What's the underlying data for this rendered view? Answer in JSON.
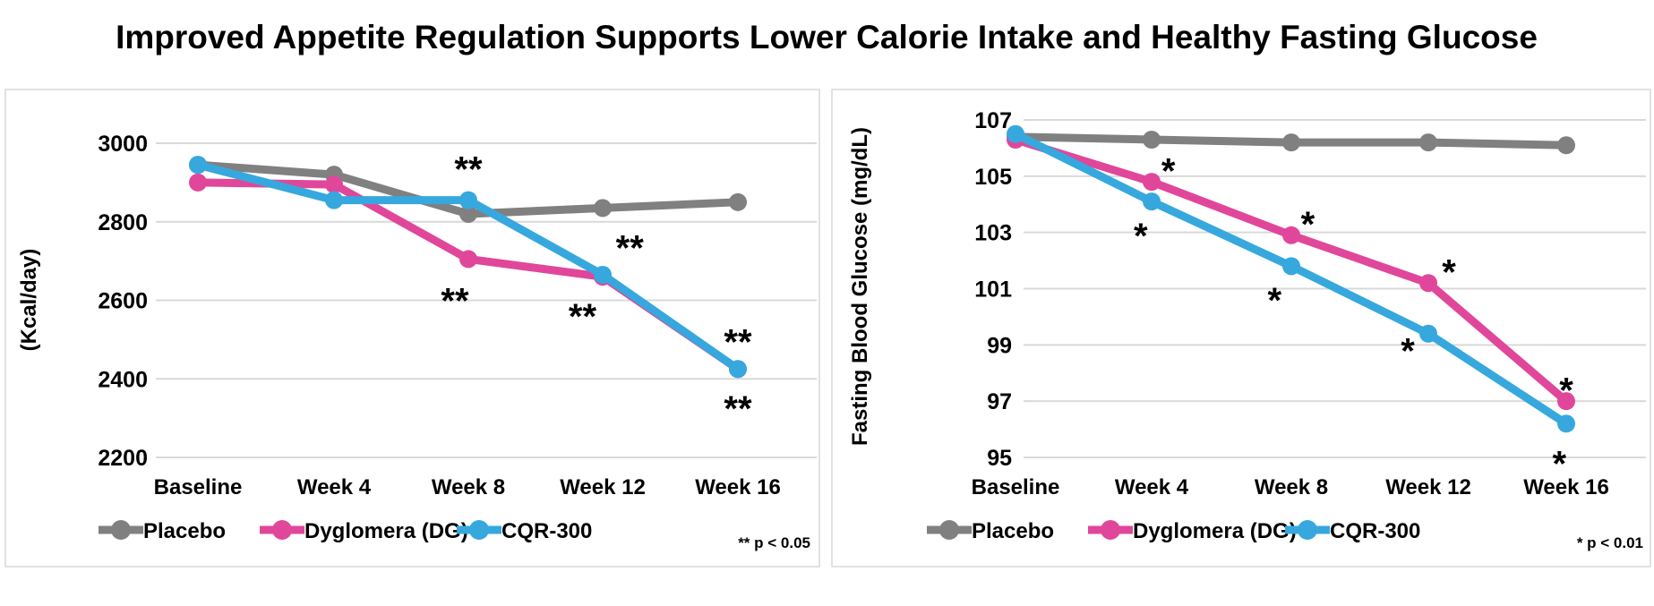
{
  "title": "Improved Appetite Regulation Supports Lower Calorie Intake and Healthy Fasting Glucose",
  "colors": {
    "Placebo": "#808080",
    "Dyglomera (DG)": "#e0479a",
    "CQR-300": "#36a8de",
    "grid": "#d9d9d9"
  },
  "chart_data": [
    {
      "type": "line",
      "title": "",
      "xlabel": "",
      "ylabel": "(Kcal/day)",
      "categories": [
        "Baseline",
        "Week 4",
        "Week 8",
        "Week 12",
        "Week 16"
      ],
      "ylim": [
        2200,
        3000
      ],
      "yticks": [
        "2200",
        "2400",
        "2600",
        "2800",
        "3000"
      ],
      "grid": true,
      "legend_placement": "bottom",
      "series": [
        {
          "name": "Placebo",
          "values": [
            2945,
            2920,
            2820,
            2835,
            2850
          ]
        },
        {
          "name": "Dyglomera (DG)",
          "values": [
            2900,
            2895,
            2705,
            2660,
            2425
          ]
        },
        {
          "name": "CQR-300",
          "values": [
            2945,
            2855,
            2855,
            2665,
            2425
          ]
        }
      ],
      "annotations": [
        {
          "text": "**",
          "x": 2,
          "y": 2935
        },
        {
          "text": "**",
          "x": 1.9,
          "y": 2600
        },
        {
          "text": "**",
          "x": 3.2,
          "y": 2735
        },
        {
          "text": "**",
          "x": 2.85,
          "y": 2560
        },
        {
          "text": "**",
          "x": 4.15,
          "y": 2495
        },
        {
          "text": "**",
          "x": 4.0,
          "y": 2325
        }
      ],
      "footnote": "** p < 0.05"
    },
    {
      "type": "line",
      "title": "",
      "xlabel": "",
      "ylabel": "Fasting Blood Glucose (mg/dL)",
      "categories": [
        "Baseline",
        "Week 4",
        "Week 8",
        "Week 12",
        "Week 16"
      ],
      "ylim": [
        95,
        107
      ],
      "yticks": [
        "95",
        "97",
        "99",
        "101",
        "103",
        "105",
        "107"
      ],
      "grid": true,
      "legend_placement": "bottom",
      "series": [
        {
          "name": "Placebo",
          "values": [
            106.4,
            106.3,
            106.2,
            106.2,
            106.1
          ]
        },
        {
          "name": "Dyglomera (DG)",
          "values": [
            106.3,
            104.8,
            102.9,
            101.2,
            97.0
          ]
        },
        {
          "name": "CQR-300",
          "values": [
            106.5,
            104.1,
            101.8,
            99.4,
            96.2
          ]
        }
      ],
      "annotations": [
        {
          "text": "*",
          "x": 1.12,
          "y": 105.2
        },
        {
          "text": "*",
          "x": 0.92,
          "y": 102.9
        },
        {
          "text": "*",
          "x": 2.12,
          "y": 103.3
        },
        {
          "text": "*",
          "x": 1.88,
          "y": 100.6
        },
        {
          "text": "*",
          "x": 3.15,
          "y": 101.6
        },
        {
          "text": "*",
          "x": 2.85,
          "y": 98.8
        },
        {
          "text": "*",
          "x": 4.1,
          "y": 97.4
        },
        {
          "text": "*",
          "x": 3.95,
          "y": 94.8
        }
      ],
      "footnote": "* p < 0.01"
    }
  ]
}
